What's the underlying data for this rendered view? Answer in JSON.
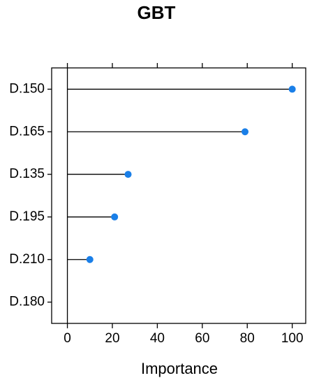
{
  "chart_data": {
    "type": "lollipop",
    "title": "GBT",
    "x_label": "Importance",
    "categories": [
      "D.150",
      "D.165",
      "D.135",
      "D.195",
      "D.210",
      "D.180"
    ],
    "values": [
      100,
      79,
      27,
      21,
      10,
      null
    ],
    "color": "#1a7fe8",
    "xlim": [
      -7,
      106
    ],
    "xticks": [
      0,
      20,
      40,
      60,
      80,
      100
    ],
    "reference_line": 0
  }
}
